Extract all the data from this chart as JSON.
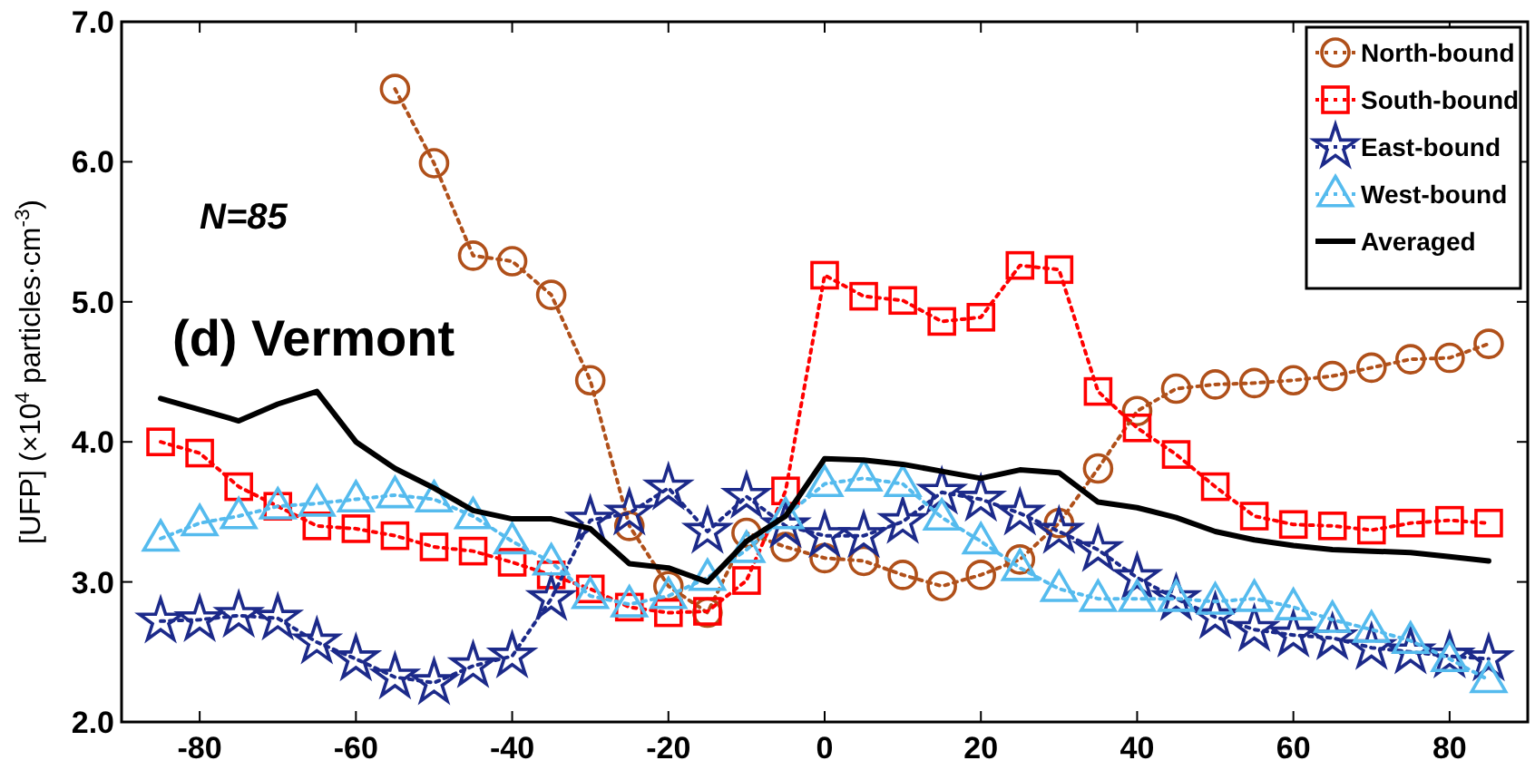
{
  "chart_data": {
    "type": "line",
    "ylabel": "[UFP] (×10$^{4}$ particles·cm$^{-3}$)",
    "annotations": [
      "N=85",
      "(d) Vermont"
    ],
    "x": [
      -85,
      -80,
      -75,
      -70,
      -65,
      -60,
      -55,
      -50,
      -45,
      -40,
      -35,
      -30,
      -25,
      -20,
      -15,
      -10,
      -5,
      0,
      5,
      10,
      15,
      20,
      25,
      30,
      35,
      40,
      45,
      50,
      55,
      60,
      65,
      70,
      75,
      80,
      85
    ],
    "xlim": [
      -90,
      90
    ],
    "xticks": [
      -80,
      -60,
      -40,
      -20,
      0,
      20,
      40,
      60,
      80
    ],
    "ylim": [
      2,
      7
    ],
    "yticks": [
      {
        "value": 2,
        "label": "2.0"
      },
      {
        "value": 3,
        "label": "3.0"
      },
      {
        "value": 4,
        "label": "4.0"
      },
      {
        "value": 5,
        "label": "5.0"
      },
      {
        "value": 6,
        "label": "6.0"
      },
      {
        "value": 7,
        "label": "7.0"
      }
    ],
    "grid": false,
    "legend": "top right",
    "series": [
      {
        "name": "North-bound",
        "color": "#b0501a",
        "marker": "circle",
        "line_style": "dotted",
        "values": [
          null,
          null,
          null,
          null,
          null,
          null,
          6.52,
          5.99,
          5.33,
          5.29,
          5.05,
          4.44,
          3.4,
          2.97,
          2.78,
          3.35,
          3.25,
          3.17,
          3.15,
          3.05,
          2.97,
          3.05,
          3.16,
          3.42,
          3.81,
          4.22,
          4.38,
          4.41,
          4.42,
          4.44,
          4.47,
          4.53,
          4.59,
          4.6,
          4.7
        ]
      },
      {
        "name": "South-bound",
        "color": "#ff0000",
        "marker": "square",
        "line_style": "dotted",
        "values": [
          4.0,
          3.92,
          3.68,
          3.54,
          3.4,
          3.38,
          3.33,
          3.25,
          3.22,
          3.14,
          3.05,
          2.95,
          2.82,
          2.78,
          2.79,
          3.01,
          3.65,
          5.19,
          5.04,
          5.01,
          4.86,
          4.89,
          5.26,
          5.23,
          4.36,
          4.1,
          3.91,
          3.68,
          3.47,
          3.41,
          3.4,
          3.37,
          3.42,
          3.44,
          3.42
        ]
      },
      {
        "name": "East-bound",
        "color": "#1c2a8a",
        "marker": "star",
        "line_style": "dotted",
        "values": [
          2.72,
          2.73,
          2.76,
          2.74,
          2.57,
          2.45,
          2.32,
          2.28,
          2.4,
          2.47,
          2.88,
          3.44,
          3.49,
          3.67,
          3.36,
          3.61,
          3.4,
          3.33,
          3.33,
          3.43,
          3.64,
          3.59,
          3.49,
          3.36,
          3.23,
          3.03,
          2.88,
          2.75,
          2.66,
          2.62,
          2.6,
          2.53,
          2.5,
          2.47,
          2.45
        ]
      },
      {
        "name": "West-bound",
        "color": "#55bbee",
        "marker": "triangle",
        "line_style": "dotted",
        "values": [
          3.31,
          3.42,
          3.47,
          3.54,
          3.56,
          3.59,
          3.62,
          3.59,
          3.47,
          3.29,
          3.14,
          2.9,
          2.84,
          2.9,
          3.03,
          3.23,
          3.47,
          3.7,
          3.74,
          3.7,
          3.46,
          3.29,
          3.1,
          2.95,
          2.88,
          2.88,
          2.88,
          2.86,
          2.88,
          2.82,
          2.73,
          2.66,
          2.58,
          2.45,
          2.3
        ]
      },
      {
        "name": "Averaged",
        "color": "#000000",
        "marker": "none",
        "line_style": "solid",
        "values": [
          4.31,
          4.23,
          4.15,
          4.27,
          4.36,
          4.0,
          3.81,
          3.67,
          3.51,
          3.45,
          3.45,
          3.38,
          3.13,
          3.1,
          3.0,
          3.29,
          3.47,
          3.88,
          3.87,
          3.84,
          3.79,
          3.74,
          3.8,
          3.78,
          3.57,
          3.53,
          3.46,
          3.36,
          3.3,
          3.26,
          3.23,
          3.22,
          3.21,
          3.18,
          3.15
        ]
      }
    ]
  }
}
